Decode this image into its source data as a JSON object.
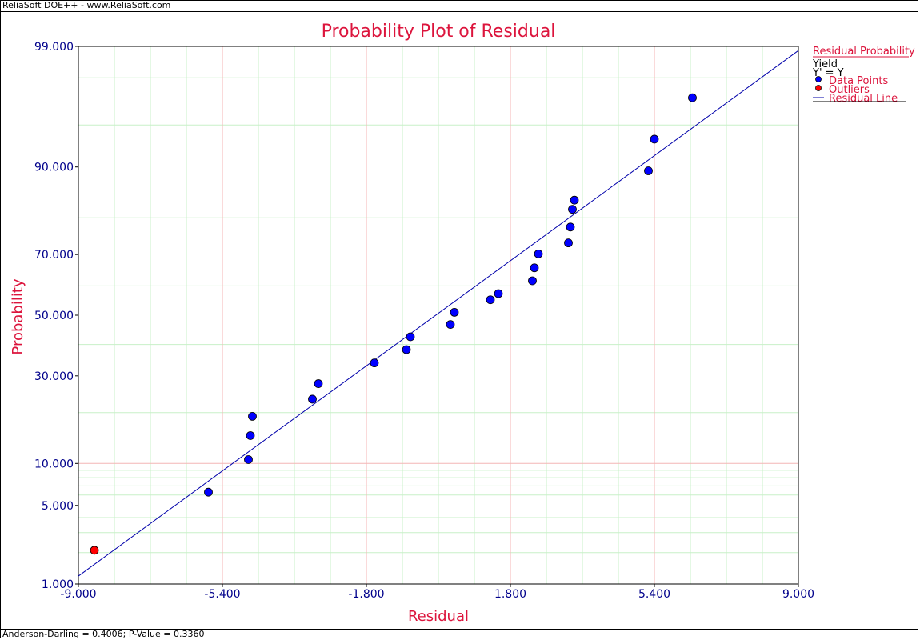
{
  "app": {
    "header": "ReliaSoft DOE++ - www.ReliaSoft.com",
    "footer": "Anderson-Darling = 0.4006; P-Value = 0.3360"
  },
  "colors": {
    "title": "#dc143c",
    "axis_text": "#00008b",
    "major_grid": "#f4b6b6",
    "minor_grid": "#c8f0c8",
    "points": "#0000ff",
    "outlier": "#ff0000",
    "fit_line": "#0000aa"
  },
  "legend": {
    "title": "Residual Probability",
    "response": "Yield",
    "equation": "Y' = Y",
    "items": [
      {
        "label": "Data Points",
        "marker": "dot-blue"
      },
      {
        "label": "Outliers",
        "marker": "dot-red"
      },
      {
        "label": "Residual Line",
        "marker": "line-blue"
      }
    ]
  },
  "chart_data": {
    "type": "scatter",
    "title": "Probability Plot of Residual",
    "xlabel": "Residual",
    "ylabel": "Probability",
    "y_scale": "normal-probability",
    "xlim": [
      -9,
      9
    ],
    "ylim": [
      1,
      99
    ],
    "x_ticks": [
      "-9.000",
      "-5.400",
      "-1.800",
      "1.800",
      "5.400",
      "9.000"
    ],
    "x_tick_values": [
      -9,
      -5.4,
      -1.8,
      1.8,
      5.4,
      9
    ],
    "y_ticks": [
      "1.000",
      "5.000",
      "10.000",
      "30.000",
      "50.000",
      "70.000",
      "90.000",
      "99.000"
    ],
    "y_tick_values": [
      1,
      5,
      10,
      30,
      50,
      70,
      90,
      99
    ],
    "minor_x": [
      -8.1,
      -7.2,
      -6.3,
      -4.5,
      -3.6,
      -2.7,
      -0.9,
      0,
      0.9,
      2.7,
      3.6,
      4.5,
      6.3,
      7.2,
      8.1
    ],
    "minor_y": [
      2,
      3,
      4,
      6,
      7,
      8,
      9,
      20,
      40,
      60,
      80,
      95,
      98
    ],
    "major_y_lines": [
      10
    ],
    "series": [
      {
        "name": "Data Points",
        "points": [
          [
            -5.75,
            6.3
          ],
          [
            -4.75,
            10.6
          ],
          [
            -4.7,
            14.9
          ],
          [
            -4.65,
            19.1
          ],
          [
            -3.0,
            27.7
          ],
          [
            -3.15,
            23.4
          ],
          [
            -1.6,
            34.0
          ],
          [
            -0.8,
            38.3
          ],
          [
            -0.7,
            42.6
          ],
          [
            0.3,
            46.8
          ],
          [
            0.4,
            51.0
          ],
          [
            1.3,
            55.3
          ],
          [
            1.5,
            57.4
          ],
          [
            2.35,
            61.7
          ],
          [
            2.4,
            65.9
          ],
          [
            2.5,
            70.2
          ],
          [
            3.25,
            73.4
          ],
          [
            3.3,
            77.7
          ],
          [
            3.35,
            82.0
          ],
          [
            3.4,
            84.0
          ],
          [
            5.25,
            89.4
          ],
          [
            5.4,
            93.6
          ],
          [
            6.35,
            97.0
          ]
        ]
      },
      {
        "name": "Outliers",
        "points": [
          [
            -8.6,
            2.1
          ]
        ]
      },
      {
        "name": "Residual Line",
        "line": [
          [
            -9.0,
            1.2
          ],
          [
            9.0,
            98.9
          ]
        ]
      }
    ],
    "grid": true,
    "legend_position": "right"
  }
}
